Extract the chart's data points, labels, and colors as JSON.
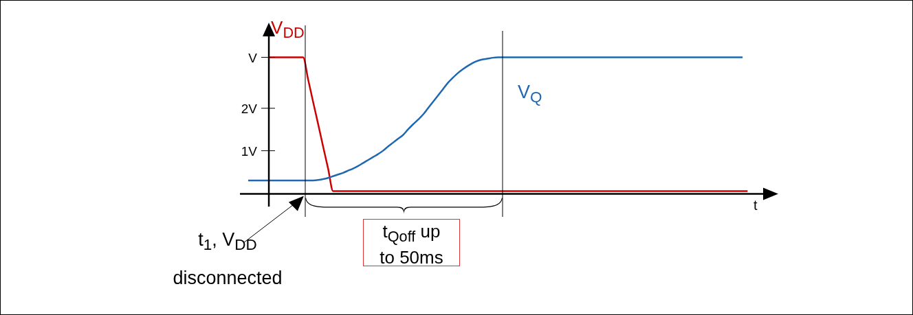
{
  "chart_data": {
    "type": "line",
    "xlabel": "t",
    "tick_labels": "y",
    "marker": "none",
    "categories": [
      null,
      null,
      null,
      null,
      null,
      null,
      null,
      null,
      null,
      null,
      null,
      null,
      null,
      null,
      null,
      null,
      null,
      null,
      null,
      null,
      null,
      null,
      null,
      null,
      null,
      null,
      null,
      null,
      null,
      null,
      null,
      null,
      null,
      null,
      null,
      null,
      null,
      null,
      null,
      null,
      null,
      null,
      null,
      null,
      null,
      null,
      null,
      null,
      null,
      null,
      null,
      null,
      null,
      null,
      null,
      null,
      null,
      null,
      null,
      null,
      null,
      null,
      null,
      null,
      null,
      null,
      null,
      null,
      null,
      null,
      null,
      null,
      null,
      null,
      null,
      null,
      null,
      null,
      null,
      null,
      null,
      null,
      null,
      null,
      null,
      null,
      null,
      null,
      null,
      null,
      null,
      null,
      null,
      null,
      null,
      null,
      null,
      null,
      null,
      null,
      null,
      null,
      null,
      null,
      null,
      null,
      null
    ],
    "ylim": [
      0,
      4
    ],
    "yticks": [
      {
        "value": 1,
        "label": "1V"
      },
      {
        "value": 2,
        "label": "2V"
      },
      {
        "value": 3.2,
        "label": "V"
      }
    ],
    "series": [
      {
        "name": "V$_{DD}$",
        "color": "#cc0000",
        "values": [
          null,
          null,
          null,
          null,
          3.2,
          3.2,
          3.2,
          3.2,
          3.2,
          3.2,
          3.2,
          3.2,
          2.68,
          2.15,
          1.63,
          1.1,
          0.58,
          0.05,
          0.05,
          0.05,
          0.05,
          0.05,
          0.05,
          0.05,
          0.05,
          0.05,
          0.05,
          0.05,
          0.05,
          0.05,
          0.05,
          0.05,
          0.05,
          0.05,
          0.05,
          0.05,
          0.05,
          0.05,
          0.05,
          0.05,
          0.05,
          0.05,
          0.05,
          0.05,
          0.05,
          0.05,
          0.05,
          0.05,
          0.05,
          0.05,
          0.05,
          0.05,
          0.05,
          0.05,
          0.05,
          0.05,
          0.05,
          0.05,
          0.05,
          0.05,
          0.05,
          0.05,
          0.05,
          0.05,
          0.05,
          0.05,
          0.05,
          0.05,
          0.05,
          0.05,
          0.05,
          0.05,
          0.05,
          0.05,
          0.05,
          0.05,
          0.05,
          0.05,
          0.05,
          0.05,
          0.05,
          0.05,
          0.05,
          0.05,
          0.05,
          0.05,
          0.05,
          0.05,
          0.05,
          0.05,
          0.05,
          0.05,
          0.05,
          0.05,
          0.05,
          0.05,
          0.05,
          0.05,
          0.05,
          0.05,
          0.05,
          null,
          null,
          null,
          null,
          null,
          null
        ]
      },
      {
        "name": "V$_{Q}$",
        "color": "#1f67b1",
        "values": [
          0.3,
          0.3,
          0.3,
          0.3,
          0.3,
          0.3,
          0.3,
          0.3,
          0.3,
          0.3,
          0.3,
          0.3,
          0.3,
          0.3,
          0.31,
          0.33,
          0.36,
          0.4,
          0.44,
          0.48,
          0.53,
          0.58,
          0.64,
          0.71,
          0.78,
          0.85,
          0.92,
          1.0,
          1.1,
          1.19,
          1.28,
          1.37,
          1.5,
          1.62,
          1.73,
          1.85,
          2.0,
          2.15,
          2.3,
          2.45,
          2.6,
          2.72,
          2.83,
          2.92,
          3.0,
          3.07,
          3.12,
          3.15,
          3.17,
          3.19,
          3.2,
          3.2,
          3.2,
          3.2,
          3.2,
          3.2,
          3.2,
          3.2,
          3.2,
          3.2,
          3.2,
          3.2,
          3.2,
          3.2,
          3.2,
          3.2,
          3.2,
          3.2,
          3.2,
          3.2,
          3.2,
          3.2,
          3.2,
          3.2,
          3.2,
          3.2,
          3.2,
          3.2,
          3.2,
          3.2,
          3.2,
          3.2,
          3.2,
          3.2,
          3.2,
          3.2,
          3.2,
          3.2,
          3.2,
          3.2,
          3.2,
          3.2,
          3.2,
          3.2,
          3.2,
          3.2,
          3.2,
          3.2,
          3.2,
          3.2,
          null,
          null,
          null,
          null,
          null,
          null,
          null
        ]
      }
    ],
    "annotations": [
      "t$_{Qoff}$ up to 50ms",
      "t$_{1}$, V$_{DD}$ disconnected"
    ]
  }
}
